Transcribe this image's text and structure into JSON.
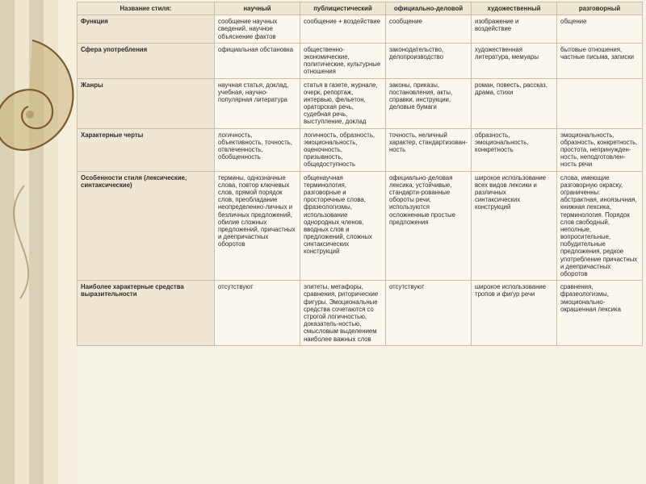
{
  "table": {
    "type": "table",
    "background_color": "#faf6ed",
    "header_bg": "#efe7d4",
    "cell_bg": "#fbf7ef",
    "border_color": "#c9bfa6",
    "font_size_pt": 7.8,
    "columns": [
      "Название стиля:",
      "научный",
      "публицистический",
      "официально-деловой",
      "художественный",
      "разговорный"
    ],
    "rows": [
      {
        "label": "Функция",
        "cells": [
          "сообщение научных сведений, научное объяснение фактов",
          "сообщение + воздействие",
          "сообщение",
          "изображение и воздействие",
          "общение"
        ]
      },
      {
        "label": "Сфера употребления",
        "cells": [
          "официальная обстановка",
          "общественно-экономические, политические, культурные отношения",
          "законодательство, делопроизводство",
          "художественная литература, мемуары",
          "бытовые отношения, частные письма, записки"
        ]
      },
      {
        "label": "Жанры",
        "cells": [
          "научная статья, доклад, учебная, научно-популярная литература",
          "статья в газете, журнале, очерк, репортаж, интервью, фельетон, ораторская речь, судебная речь, выступление, доклад",
          "законы, приказы, постановления, акты, справки, инструкции, деловые бумаги",
          "роман, повесть, рассказ, драма, стихи",
          ""
        ]
      },
      {
        "label": "Характерные черты",
        "cells": [
          "логичность, объективность, точность, отвлеченность, обобщенность",
          "логичность, образность, эмоциональность, оценочность, призывность, общедоступность",
          "точность, неличный характер, стандартизован-ность",
          "образность, эмоциональность, конкретность",
          "эмоциональность, образность, конкретность, простота, непринужден-ность, неподготовлен-ность речи"
        ]
      },
      {
        "label": "Особенности стиля (лексические, синтаксические)",
        "cells": [
          "термины, однозначные слова, повтор ключевых слов, прямой порядок слов, преобладание неопределенно-личных и безличных предложений, обилие сложных предложений, причастных и деепричастных оборотов",
          "общенаучная терминология, разговорные и просторечные слова, фразеологизмы, использование однородных членов, вводных слов и предложений, сложных синтаксических конструкций",
          "официально-деловая лексика, устойчивые, стандарти-рованные обороты речи, используются осложненные простые предложения",
          "широкое использование всех видов лексики и различных синтаксических конструкций",
          "слова, имеющие разговорную окраску, ограниченны: абстрактная, иноязычная, книжная лексика, терминология. Порядок слов свободный, неполные, вопросительные, побудительные предложения, редкое употребление причастных и деепричастных оборотов"
        ]
      },
      {
        "label": "Наиболее характерные средства выразительности",
        "cells": [
          "отсутствуют",
          "эпитеты, метафоры, сравнения, риторические фигуры. Эмоциональные средства сочетаются со строгой логичностью, доказатель-ностью, смысловым выделением наиболее важных слов",
          "отсутствуют",
          "широкое использование тропов и фигур речи",
          "сравнения, фразеологизмы, эмоционально-окрашенная лексика"
        ]
      }
    ]
  },
  "decor": {
    "stripe_outer": "#d9d0b5",
    "stripe_inner": "#eee6cf",
    "swirl_stroke": "#7d5a2e",
    "swirl_fill": "#cbb27a"
  }
}
